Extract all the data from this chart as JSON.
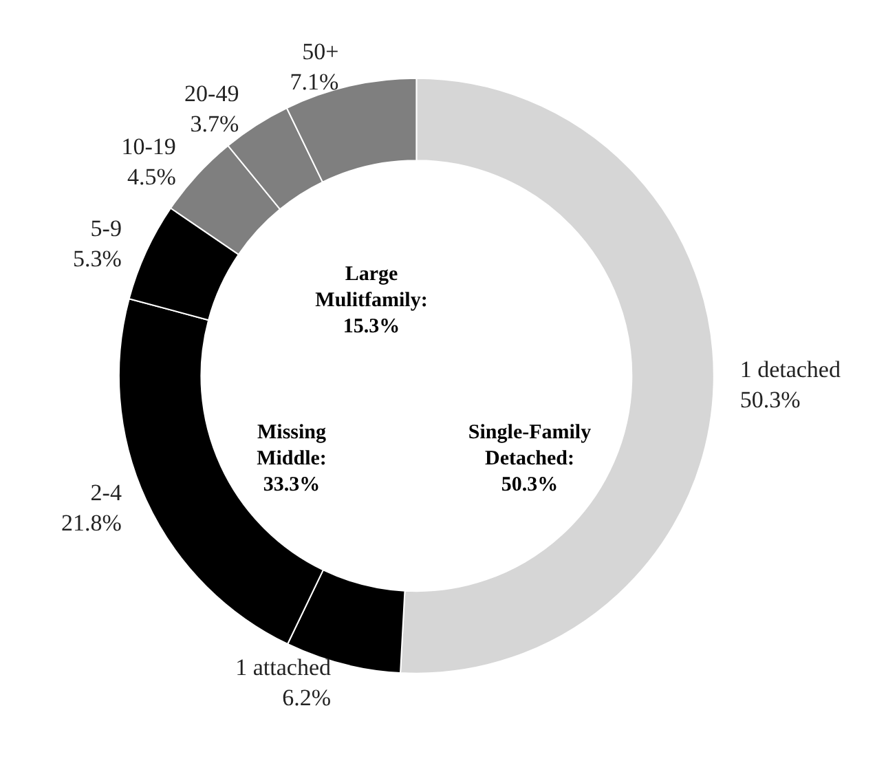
{
  "chart_data": {
    "type": "donut",
    "categories": [
      "1 detached",
      "1 attached",
      "2-4",
      "5-9",
      "10-19",
      "20-49",
      "50+"
    ],
    "values": [
      50.3,
      6.2,
      21.8,
      5.3,
      4.5,
      3.7,
      7.1
    ],
    "value_labels": [
      "50.3%",
      "6.2%",
      "21.8%",
      "5.3%",
      "4.5%",
      "3.7%",
      "7.1%"
    ],
    "colors": [
      "#d6d6d6",
      "#000000",
      "#000000",
      "#000000",
      "#7f7f7f",
      "#7f7f7f",
      "#7f7f7f"
    ],
    "annotations": [
      "Large\nMulitfamily:\n15.3%",
      "Missing\nMiddle:\n33.3%",
      "Single-Family\nDetached:\n50.3%"
    ],
    "legend": false
  }
}
